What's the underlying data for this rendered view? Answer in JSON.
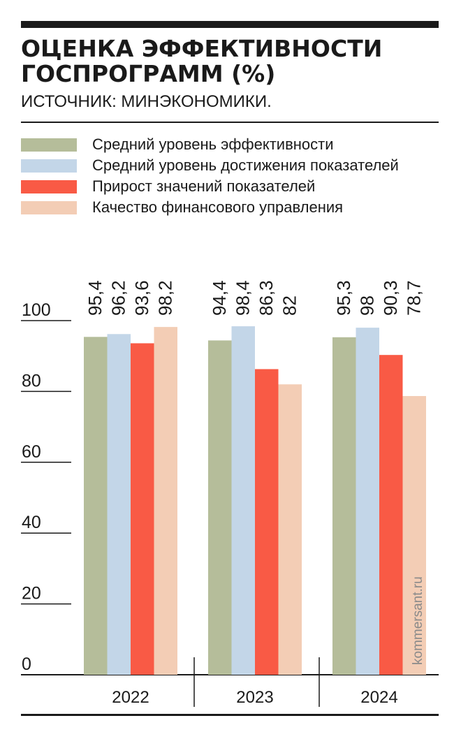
{
  "title": "ОЦЕНКА ЭФФЕКТИВНОСТИ\nГОСПРОГРАММ (%)",
  "source": "ИСТОЧНИК: МИНЭКОНОМИКИ.",
  "watermark": "kommersant.ru",
  "colors": {
    "text": "#1a1a1a",
    "series": [
      "#b5bd9a",
      "#c3d6e8",
      "#f95a45",
      "#f3cdb5"
    ]
  },
  "chart_data": {
    "type": "bar",
    "categories": [
      "2022",
      "2023",
      "2024"
    ],
    "series": [
      {
        "name": "Средний уровень эффективности",
        "color": "#b5bd9a",
        "values": [
          95.4,
          94.4,
          95.3
        ],
        "labels": [
          "95,4",
          "94,4",
          "95,3"
        ]
      },
      {
        "name": "Средний уровень достижения показателей",
        "color": "#c3d6e8",
        "values": [
          96.2,
          98.4,
          98
        ],
        "labels": [
          "96,2",
          "98,4",
          "98"
        ]
      },
      {
        "name": "Прирост значений показателей",
        "color": "#f95a45",
        "values": [
          93.6,
          86.3,
          90.3
        ],
        "labels": [
          "93,6",
          "86,3",
          "90,3"
        ]
      },
      {
        "name": "Качество финансового управления",
        "color": "#f3cdb5",
        "values": [
          98.2,
          82,
          78.7
        ],
        "labels": [
          "98,2",
          "82",
          "78,7"
        ]
      }
    ],
    "yticks": [
      0,
      20,
      40,
      60,
      80,
      100
    ],
    "ytick_labels": [
      "0",
      "20",
      "40",
      "60",
      "80",
      "100"
    ],
    "ylim": [
      0,
      100
    ],
    "legend": "top"
  }
}
